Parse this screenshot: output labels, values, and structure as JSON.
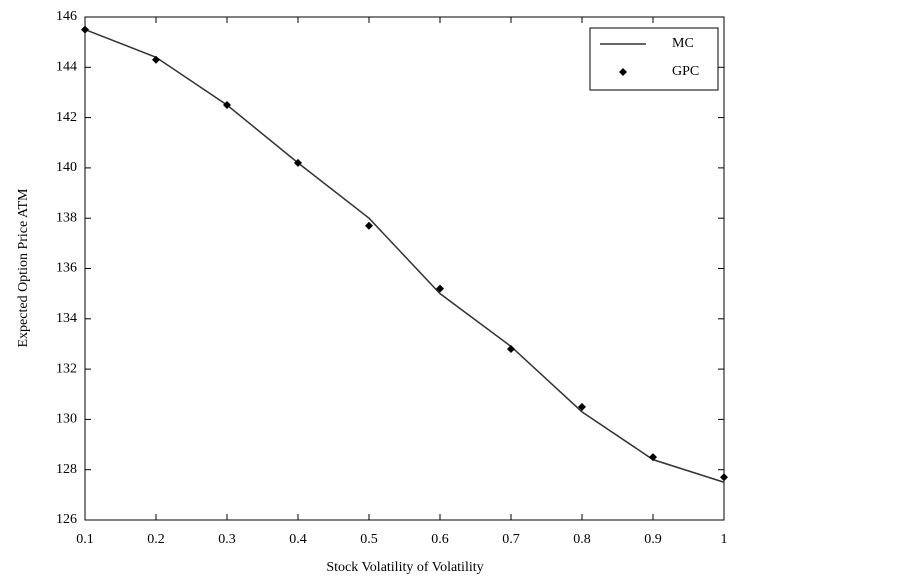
{
  "chart_data": {
    "type": "line",
    "x_label": "Stock Volatility of Volatility",
    "y_label": "Expected Option Price ATM",
    "x": [
      0.1,
      0.2,
      0.3,
      0.4,
      0.5,
      0.6,
      0.7,
      0.8,
      0.9,
      1
    ],
    "series": [
      {
        "name": "MC",
        "color": "#333333",
        "mode": "line",
        "values": [
          145.5,
          144.4,
          142.5,
          140.2,
          138.0,
          135.0,
          132.9,
          130.3,
          128.4,
          127.5
        ]
      },
      {
        "name": "GPC",
        "color": "#000000",
        "mode": "markers",
        "values": [
          145.5,
          144.3,
          142.5,
          140.2,
          137.7,
          135.2,
          132.8,
          130.5,
          128.5,
          127.7
        ]
      }
    ],
    "xlim": [
      0.1,
      1
    ],
    "ylim": [
      126,
      146
    ],
    "xticks": [
      0.1,
      0.2,
      0.3,
      0.4,
      0.5,
      0.6,
      0.7,
      0.8,
      0.9,
      1
    ],
    "yticks": [
      126,
      128,
      130,
      132,
      134,
      136,
      138,
      140,
      142,
      144,
      146
    ],
    "legend": "upper right",
    "grid": false
  }
}
